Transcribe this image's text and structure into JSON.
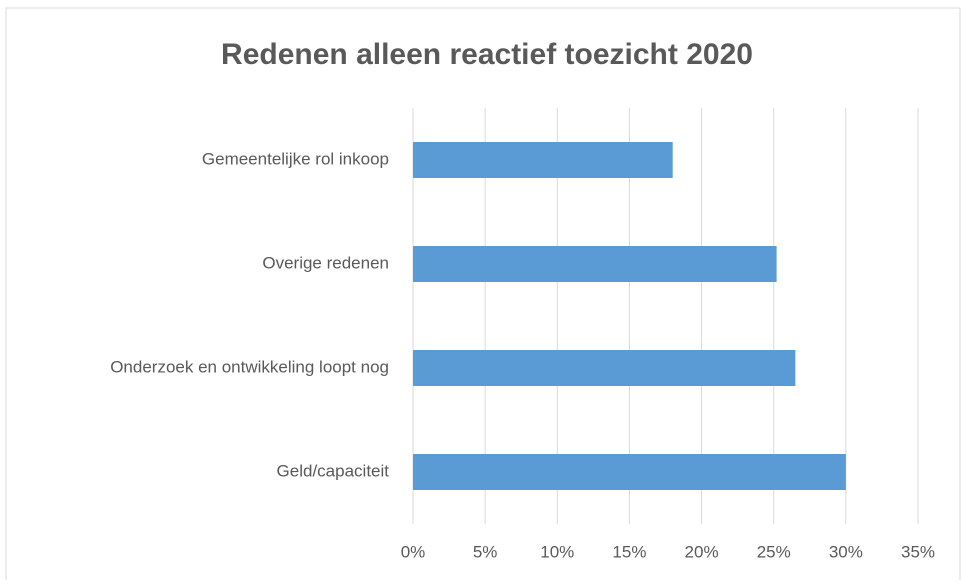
{
  "chart_data": {
    "type": "bar",
    "orientation": "horizontal",
    "title": "Redenen alleen reactief toezicht 2020",
    "categories": [
      "Gemeentelijke rol inkoop",
      "Overige redenen",
      "Onderzoek en ontwikkeling loopt nog",
      "Geld/capaciteit"
    ],
    "values": [
      18,
      25.2,
      26.5,
      30
    ],
    "color": "#5b9bd5",
    "xlim": [
      0,
      35
    ],
    "xticks": [
      {
        "value": 0,
        "label": "0%"
      },
      {
        "value": 5,
        "label": "5%"
      },
      {
        "value": 10,
        "label": "10%"
      },
      {
        "value": 15,
        "label": "15%"
      },
      {
        "value": 20,
        "label": "20%"
      },
      {
        "value": 25,
        "label": "25%"
      },
      {
        "value": 30,
        "label": "30%"
      },
      {
        "value": 35,
        "label": "35%"
      }
    ],
    "grid": true
  }
}
